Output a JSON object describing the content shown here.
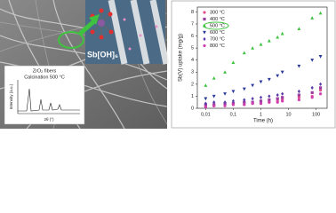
{
  "image_texts": {
    "molecule": "Sb[OH]₆",
    "inset_title": "ZrO₂ fibers",
    "inset_subtitle": "Calcination 500 °C",
    "inset_ylabel": "Intensity (a.u.)",
    "inset_xlabel": "2θ (°)"
  },
  "chart_data": {
    "type": "scatter",
    "xlabel": "Time (h)",
    "ylabel": "Sb(V) uptake (mg/g)",
    "xscale": "log",
    "xlim": [
      0.005,
      250
    ],
    "xticks": [
      {
        "value": 0.01,
        "label": "0,01"
      },
      {
        "value": 0.1,
        "label": "0,1"
      },
      1,
      10,
      100
    ],
    "ylim": [
      0,
      8.4
    ],
    "yticks": [
      0,
      1,
      2,
      3,
      4,
      5,
      6,
      7,
      8
    ],
    "legend": "top-left",
    "x": [
      0.01,
      0.02,
      0.05,
      0.1,
      0.25,
      0.5,
      1,
      2,
      4,
      6,
      24,
      72,
      144
    ],
    "series": [
      {
        "name": "300 °C",
        "color": "#e0508a",
        "marker": "circle",
        "values": [
          0.2,
          0.2,
          0.3,
          0.3,
          0.3,
          0.4,
          0.4,
          0.5,
          0.6,
          0.7,
          0.9,
          1.0,
          1.5
        ]
      },
      {
        "name": "400 °C",
        "color": "#9a3ca0",
        "marker": "square",
        "values": [
          0.3,
          0.3,
          0.4,
          0.4,
          0.5,
          0.5,
          0.6,
          0.7,
          0.8,
          0.9,
          1.1,
          1.3,
          1.7
        ]
      },
      {
        "name": "500 °C",
        "color": "#3fc23f",
        "marker": "triangle-up",
        "values": [
          1.9,
          2.5,
          3.0,
          3.8,
          4.6,
          5.0,
          5.3,
          5.6,
          5.9,
          6.2,
          6.6,
          7.5,
          7.9
        ]
      },
      {
        "name": "600 °C",
        "color": "#2a3a9a",
        "marker": "triangle-down",
        "values": [
          0.8,
          1.0,
          1.2,
          1.4,
          1.6,
          1.9,
          2.2,
          2.4,
          2.7,
          3.0,
          3.5,
          4.0,
          4.3
        ]
      },
      {
        "name": "700 °C",
        "color": "#5a3ca8",
        "marker": "diamond",
        "values": [
          0.4,
          0.5,
          0.5,
          0.6,
          0.7,
          0.8,
          0.9,
          1.0,
          1.1,
          1.2,
          1.4,
          1.7,
          2.0
        ]
      },
      {
        "name": "800 °C",
        "color": "#d040b0",
        "marker": "circle",
        "values": [
          0.1,
          0.2,
          0.2,
          0.3,
          0.3,
          0.4,
          0.4,
          0.5,
          0.5,
          0.6,
          0.7,
          0.9,
          1.2
        ]
      }
    ]
  }
}
